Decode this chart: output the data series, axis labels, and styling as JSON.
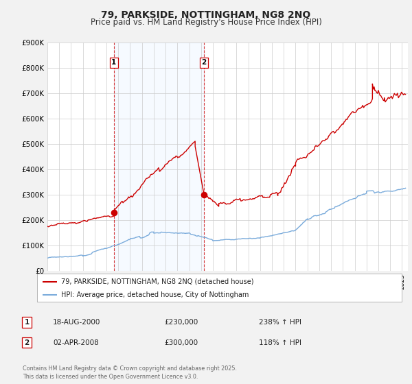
{
  "title": "79, PARKSIDE, NOTTINGHAM, NG8 2NQ",
  "subtitle": "Price paid vs. HM Land Registry's House Price Index (HPI)",
  "legend_line1": "79, PARKSIDE, NOTTINGHAM, NG8 2NQ (detached house)",
  "legend_line2": "HPI: Average price, detached house, City of Nottingham",
  "footer": "Contains HM Land Registry data © Crown copyright and database right 2025.\nThis data is licensed under the Open Government Licence v3.0.",
  "transaction1": {
    "date": "18-AUG-2000",
    "price": "£230,000",
    "label": "1",
    "hpi_change": "238% ↑ HPI"
  },
  "transaction2": {
    "date": "02-APR-2008",
    "price": "£300,000",
    "label": "2",
    "hpi_change": "118% ↑ HPI"
  },
  "red_line_color": "#cc0000",
  "blue_line_color": "#7aabdb",
  "vline_color": "#cc0000",
  "shade_color": "#ddeeff",
  "bg_color": "#f2f2f2",
  "plot_bg_color": "#ffffff",
  "ylim": [
    0,
    900000
  ],
  "yticks": [
    0,
    100000,
    200000,
    300000,
    400000,
    500000,
    600000,
    700000,
    800000,
    900000
  ],
  "ytick_labels": [
    "£0",
    "£100K",
    "£200K",
    "£300K",
    "£400K",
    "£500K",
    "£600K",
    "£700K",
    "£800K",
    "£900K"
  ],
  "xmin": 1995.0,
  "xmax": 2025.5,
  "sale1_year": 2000.63,
  "sale1_price": 230000,
  "sale2_year": 2008.25,
  "sale2_price": 300000
}
